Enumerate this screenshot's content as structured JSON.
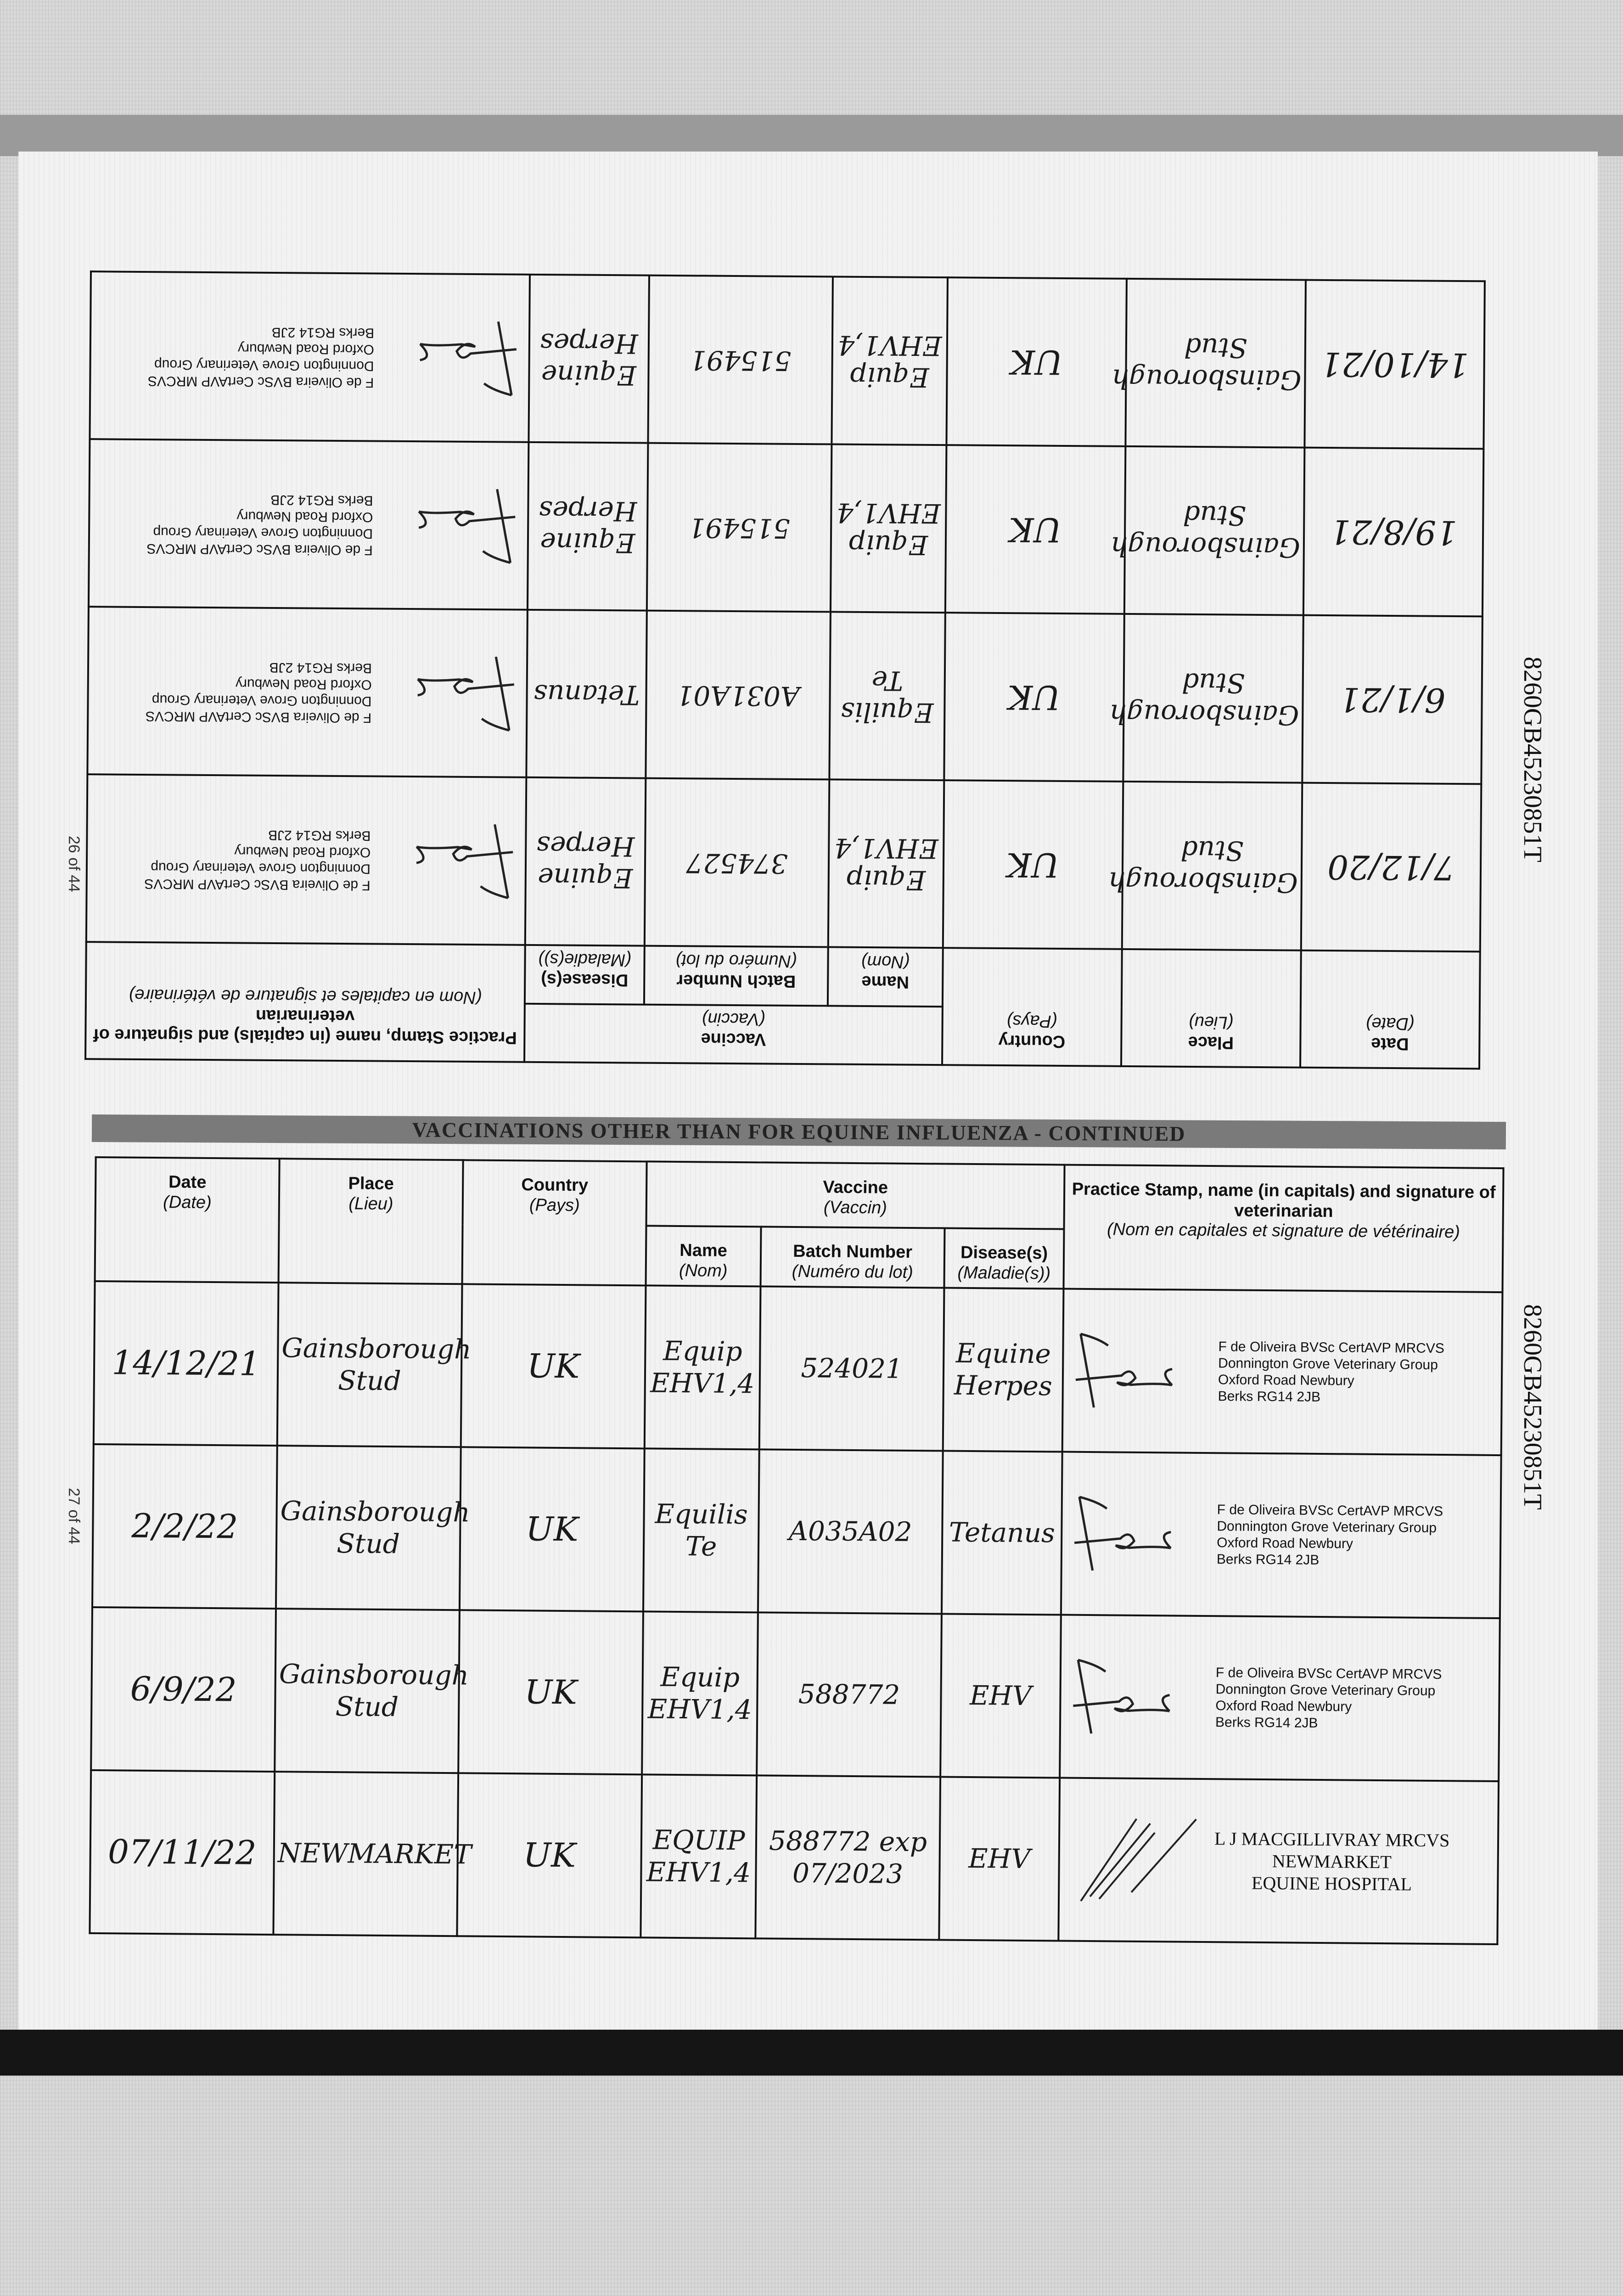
{
  "document_id": "8260GB45230851T",
  "pages": {
    "left": "26 of 44",
    "right": "27 of 44"
  },
  "section_banner": "VACCINATIONS OTHER THAN FOR EQUINE INFLUENZA - CONTINUED",
  "headers": {
    "date": "Date",
    "date_fr": "(Date)",
    "place": "Place",
    "place_fr": "(Lieu)",
    "country": "Country",
    "country_fr": "(Pays)",
    "vaccine": "Vaccine",
    "vaccine_fr": "(Vaccin)",
    "name": "Name",
    "name_fr": "(Nom)",
    "batch": "Batch Number",
    "batch_fr": "(Numéro du lot)",
    "disease": "Disease(s)",
    "disease_fr": "(Maladie(s))",
    "stamp": "Practice Stamp, name (in capitals) and signature of veterinarian",
    "stamp_fr": "(Nom en capitales et signature de vétérinaire)"
  },
  "stamps": {
    "oliveira": [
      "F de Oliveira BVSc CertAVP MRCVS",
      "Donnington Grove Veterinary Group",
      "Oxford Road Newbury",
      "Berks RG14 2JB"
    ],
    "maccgillivray": [
      "L J MACGILLIVRAY MRCVS",
      "NEWMARKET",
      "EQUINE HOSPITAL"
    ]
  },
  "top_table_rows": [
    {
      "date": "7/12/20",
      "place": "Gainsborough Stud",
      "country": "UK",
      "name": "Equip EHV1,4",
      "batch": "374527",
      "disease": "Equine Herpes"
    },
    {
      "date": "6/1/21",
      "place": "Gainsborough Stud",
      "country": "UK",
      "name": "Equilis Te",
      "batch": "A031A01",
      "disease": "Tetanus"
    },
    {
      "date": "19/8/21",
      "place": "Gainsborough Stud",
      "country": "UK",
      "name": "Equip EHV1,4",
      "batch": "515491",
      "disease": "Equine Herpes"
    },
    {
      "date": "14/10/21",
      "place": "Gainsborough Stud",
      "country": "UK",
      "name": "Equip EHV1,4",
      "batch": "515491",
      "disease": "Equine Herpes"
    }
  ],
  "bottom_table_rows": [
    {
      "date": "14/12/21",
      "place": "Gainsborough Stud",
      "country": "UK",
      "name": "Equip EHV1,4",
      "batch": "524021",
      "disease": "Equine Herpes"
    },
    {
      "date": "2/2/22",
      "place": "Gainsborough Stud",
      "country": "UK",
      "name": "Equilis Te",
      "batch": "A035A02",
      "disease": "Tetanus"
    },
    {
      "date": "6/9/22",
      "place": "Gainsborough Stud",
      "country": "UK",
      "name": "Equip EHV1,4",
      "batch": "588772",
      "disease": "EHV"
    },
    {
      "date": "07/11/22",
      "place": "NEWMARKET",
      "country": "UK",
      "name": "EQUIP EHV1,4",
      "batch": "588772 exp 07/2023",
      "disease": "EHV"
    }
  ]
}
